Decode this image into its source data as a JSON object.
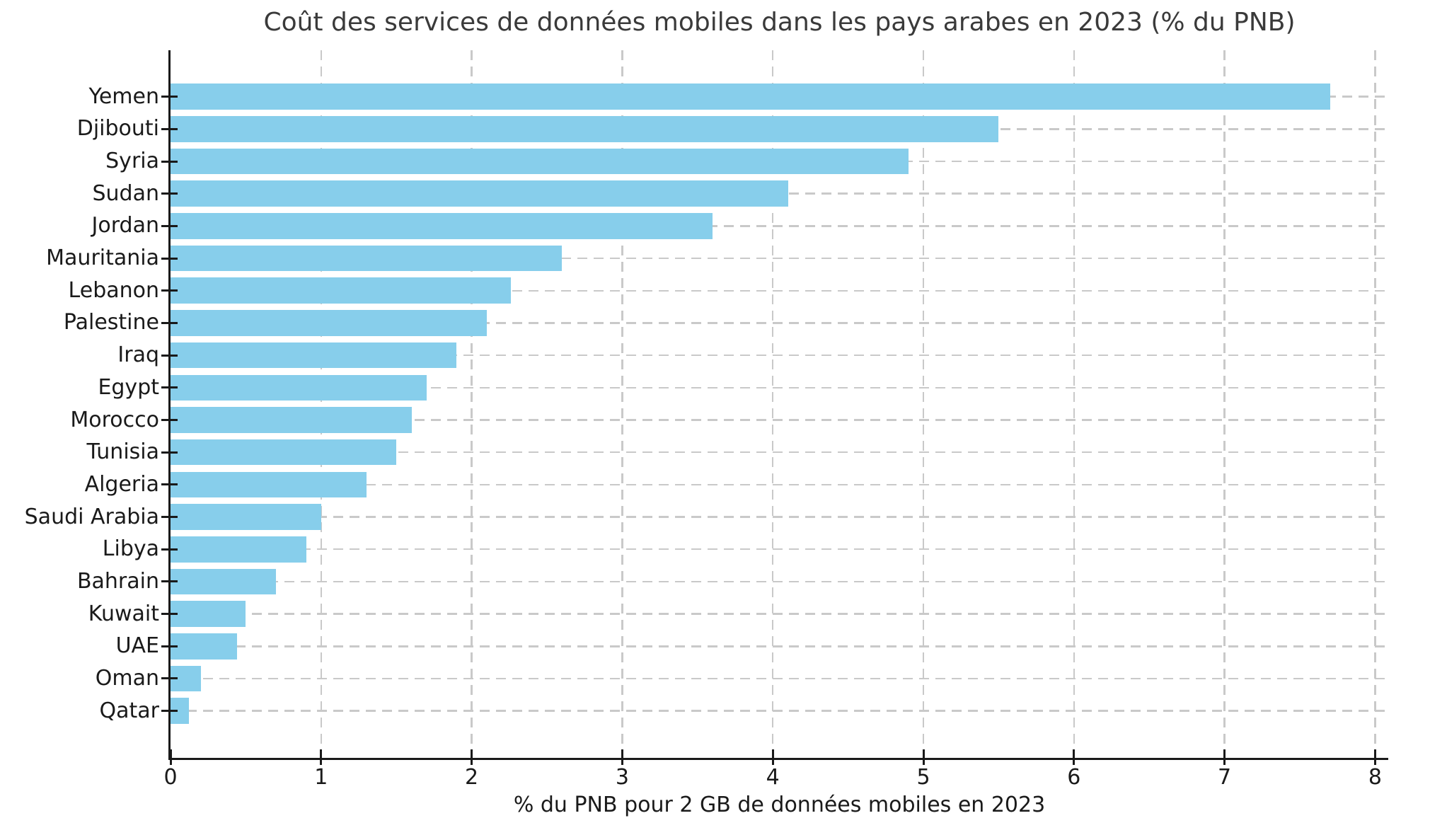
{
  "chart_data": {
    "type": "bar",
    "orientation": "horizontal",
    "title": "Coût des services de données mobiles dans les pays arabes en 2023 (% du PNB)",
    "xlabel": "% du PNB pour 2 GB de données mobiles en 2023",
    "ylabel": "",
    "categories": [
      "Yemen",
      "Djibouti",
      "Syria",
      "Sudan",
      "Jordan",
      "Mauritania",
      "Lebanon",
      "Palestine",
      "Iraq",
      "Egypt",
      "Morocco",
      "Tunisia",
      "Algeria",
      "Saudi Arabia",
      "Libya",
      "Bahrain",
      "Kuwait",
      "UAE",
      "Oman",
      "Qatar"
    ],
    "values": [
      7.7,
      5.5,
      4.9,
      4.1,
      3.6,
      2.6,
      2.26,
      2.1,
      1.9,
      1.7,
      1.6,
      1.5,
      1.3,
      1.0,
      0.9,
      0.7,
      0.5,
      0.44,
      0.2,
      0.12
    ],
    "xticks": [
      0,
      1,
      2,
      3,
      4,
      5,
      6,
      7,
      8
    ],
    "xlim": [
      0,
      8.08
    ],
    "grid": true,
    "grid_style": "dashed",
    "legend": "none",
    "bar_color": "#87CEEB",
    "grid_color": "#c9c9c9",
    "axis_color": "#1a1a1a",
    "title_color": "#3a3a3a",
    "tick_label_color": "#1a1a1a",
    "background_color": "#ffffff"
  }
}
